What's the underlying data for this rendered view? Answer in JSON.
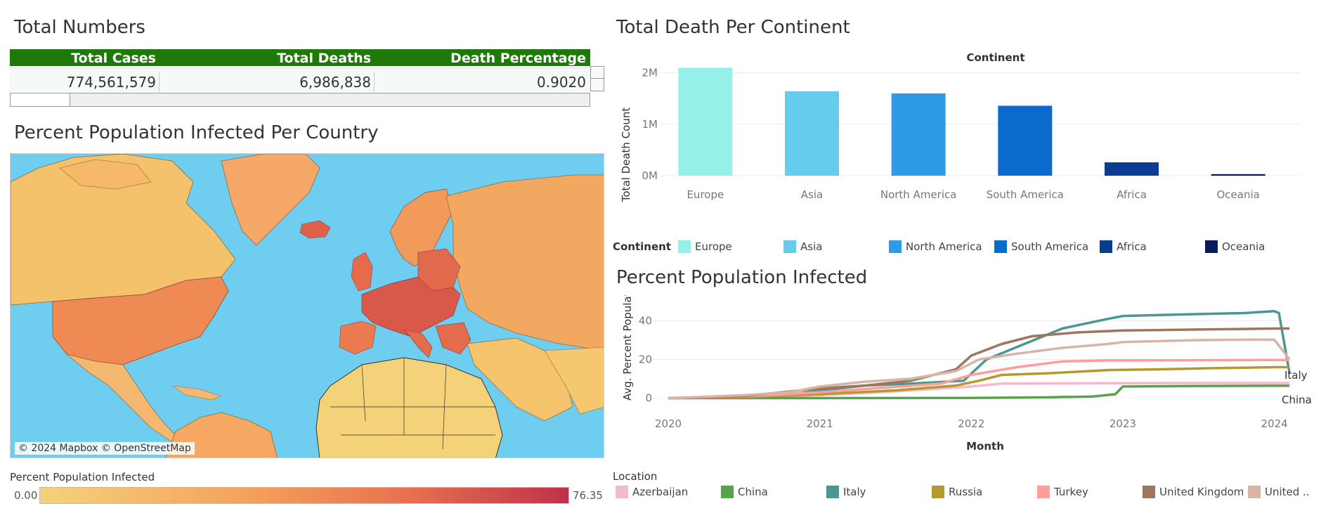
{
  "kpi": {
    "title": "Total Numbers",
    "headers": [
      "Total Cases",
      "Total Deaths",
      "Death Percentage"
    ],
    "values": [
      "774,561,579",
      "6,986,838",
      "0.9020"
    ]
  },
  "map": {
    "title": "Percent Population Infected Per Country",
    "attribution": "© 2024 Mapbox © OpenStreetMap",
    "legend_title": "Percent Population Infected",
    "legend_min": "0.00",
    "legend_max": "76.35",
    "colors": {
      "ocean": "#6fcdf0",
      "low": "#f5d27a",
      "mid": "#f5a05a",
      "high": "#e8704e",
      "max": "#c0304a"
    }
  },
  "bar": {
    "title": "Total Death Per Continent",
    "col_header": "Continent",
    "legend_title": "Continent",
    "legend_labels": [
      "Europe",
      "Asia",
      "North America",
      "South America",
      "Africa",
      "Oceania"
    ]
  },
  "line": {
    "title": "Percent Population Infected",
    "legend_title": "Location",
    "legend_labels": [
      "Azerbaijan",
      "China",
      "Italy",
      "Russia",
      "Turkey",
      "United Kingdom",
      "United .."
    ],
    "end_labels": [
      "Italy",
      "China"
    ]
  },
  "chart_data": [
    {
      "type": "bar",
      "title": "Total Death Per Continent",
      "xlabel": "",
      "ylabel": "Total Death Count",
      "categories": [
        "Europe",
        "Asia",
        "North America",
        "South America",
        "Africa",
        "Oceania"
      ],
      "values": [
        2100000,
        1640000,
        1600000,
        1360000,
        260000,
        30000
      ],
      "colors": [
        "#96f0ea",
        "#66ccee",
        "#2e9be8",
        "#0a6bcc",
        "#0a3d91",
        "#081a5e"
      ],
      "ylim": [
        0,
        2050000
      ],
      "yticks": [
        0,
        1000000,
        2000000
      ],
      "ytick_labels": [
        "0M",
        "1M",
        "2M"
      ],
      "grid": true,
      "legend": "bottom"
    },
    {
      "type": "line",
      "title": "Percent Population Infected",
      "xlabel": "Month",
      "ylabel": "Avg. Percent Populat..",
      "xlim": [
        2020.0,
        2024.15
      ],
      "ylim": [
        -2,
        46
      ],
      "xticks": [
        2020,
        2021,
        2022,
        2023,
        2024
      ],
      "yticks": [
        0,
        20,
        40
      ],
      "grid": true,
      "legend": "bottom",
      "series": [
        {
          "name": "Azerbaijan",
          "color": "#f5b8d0",
          "points": [
            [
              2020.0,
              0
            ],
            [
              2020.5,
              0.2
            ],
            [
              2021.0,
              1.5
            ],
            [
              2021.5,
              3.5
            ],
            [
              2022.0,
              6
            ],
            [
              2022.2,
              7.5
            ],
            [
              2022.5,
              7.6
            ],
            [
              2023.0,
              7.7
            ],
            [
              2023.5,
              7.8
            ],
            [
              2024.0,
              7.8
            ],
            [
              2024.1,
              7.8
            ]
          ]
        },
        {
          "name": "China",
          "color": "#59a14f",
          "points": [
            [
              2020.0,
              0
            ],
            [
              2021.0,
              0
            ],
            [
              2022.0,
              0.1
            ],
            [
              2022.5,
              0.4
            ],
            [
              2022.8,
              0.8
            ],
            [
              2022.95,
              2
            ],
            [
              2023.0,
              6
            ],
            [
              2023.5,
              6.3
            ],
            [
              2024.0,
              6.4
            ],
            [
              2024.1,
              6.4
            ]
          ]
        },
        {
          "name": "Italy",
          "color": "#499894",
          "points": [
            [
              2020.0,
              0
            ],
            [
              2020.5,
              0.5
            ],
            [
              2020.75,
              1
            ],
            [
              2021.0,
              4
            ],
            [
              2021.3,
              6.5
            ],
            [
              2021.6,
              7.5
            ],
            [
              2021.95,
              9
            ],
            [
              2022.1,
              20
            ],
            [
              2022.35,
              28
            ],
            [
              2022.6,
              36
            ],
            [
              2022.9,
              41
            ],
            [
              2023.0,
              42.5
            ],
            [
              2023.5,
              43.5
            ],
            [
              2023.8,
              44
            ],
            [
              2024.0,
              45
            ],
            [
              2024.03,
              44
            ],
            [
              2024.1,
              13
            ]
          ]
        },
        {
          "name": "Russia",
          "color": "#b6992d",
          "points": [
            [
              2020.0,
              0
            ],
            [
              2020.5,
              0.5
            ],
            [
              2021.0,
              2
            ],
            [
              2021.5,
              4
            ],
            [
              2021.9,
              6.5
            ],
            [
              2022.05,
              9
            ],
            [
              2022.2,
              12
            ],
            [
              2022.5,
              12.8
            ],
            [
              2022.9,
              14.5
            ],
            [
              2023.3,
              15
            ],
            [
              2023.6,
              15.5
            ],
            [
              2024.0,
              16
            ],
            [
              2024.1,
              16
            ]
          ]
        },
        {
          "name": "Turkey",
          "color": "#ff9d9a",
          "points": [
            [
              2020.0,
              0
            ],
            [
              2020.5,
              0.8
            ],
            [
              2021.0,
              3
            ],
            [
              2021.35,
              5
            ],
            [
              2021.8,
              7.5
            ],
            [
              2022.0,
              12
            ],
            [
              2022.3,
              16
            ],
            [
              2022.6,
              19
            ],
            [
              2022.9,
              19.5
            ],
            [
              2023.5,
              19.6
            ],
            [
              2024.0,
              19.7
            ],
            [
              2024.1,
              19.7
            ]
          ]
        },
        {
          "name": "United Kingdom",
          "color": "#9d7660",
          "points": [
            [
              2020.0,
              0
            ],
            [
              2020.5,
              1
            ],
            [
              2021.0,
              5
            ],
            [
              2021.3,
              6.5
            ],
            [
              2021.6,
              9
            ],
            [
              2021.9,
              15
            ],
            [
              2022.0,
              22
            ],
            [
              2022.2,
              28
            ],
            [
              2022.4,
              32
            ],
            [
              2022.7,
              34
            ],
            [
              2023.0,
              35
            ],
            [
              2023.5,
              35.5
            ],
            [
              2024.0,
              36
            ],
            [
              2024.1,
              36
            ]
          ]
        },
        {
          "name": "United ..",
          "color": "#d7b5a6",
          "points": [
            [
              2020.0,
              0
            ],
            [
              2020.5,
              1.5
            ],
            [
              2020.8,
              3
            ],
            [
              2021.0,
              6
            ],
            [
              2021.3,
              8.5
            ],
            [
              2021.6,
              10
            ],
            [
              2021.9,
              14
            ],
            [
              2022.05,
              20
            ],
            [
              2022.3,
              23
            ],
            [
              2022.6,
              26
            ],
            [
              2022.9,
              28
            ],
            [
              2023.0,
              29
            ],
            [
              2023.5,
              30
            ],
            [
              2023.8,
              30.2
            ],
            [
              2024.0,
              30.2
            ],
            [
              2024.1,
              20
            ]
          ]
        }
      ]
    }
  ]
}
